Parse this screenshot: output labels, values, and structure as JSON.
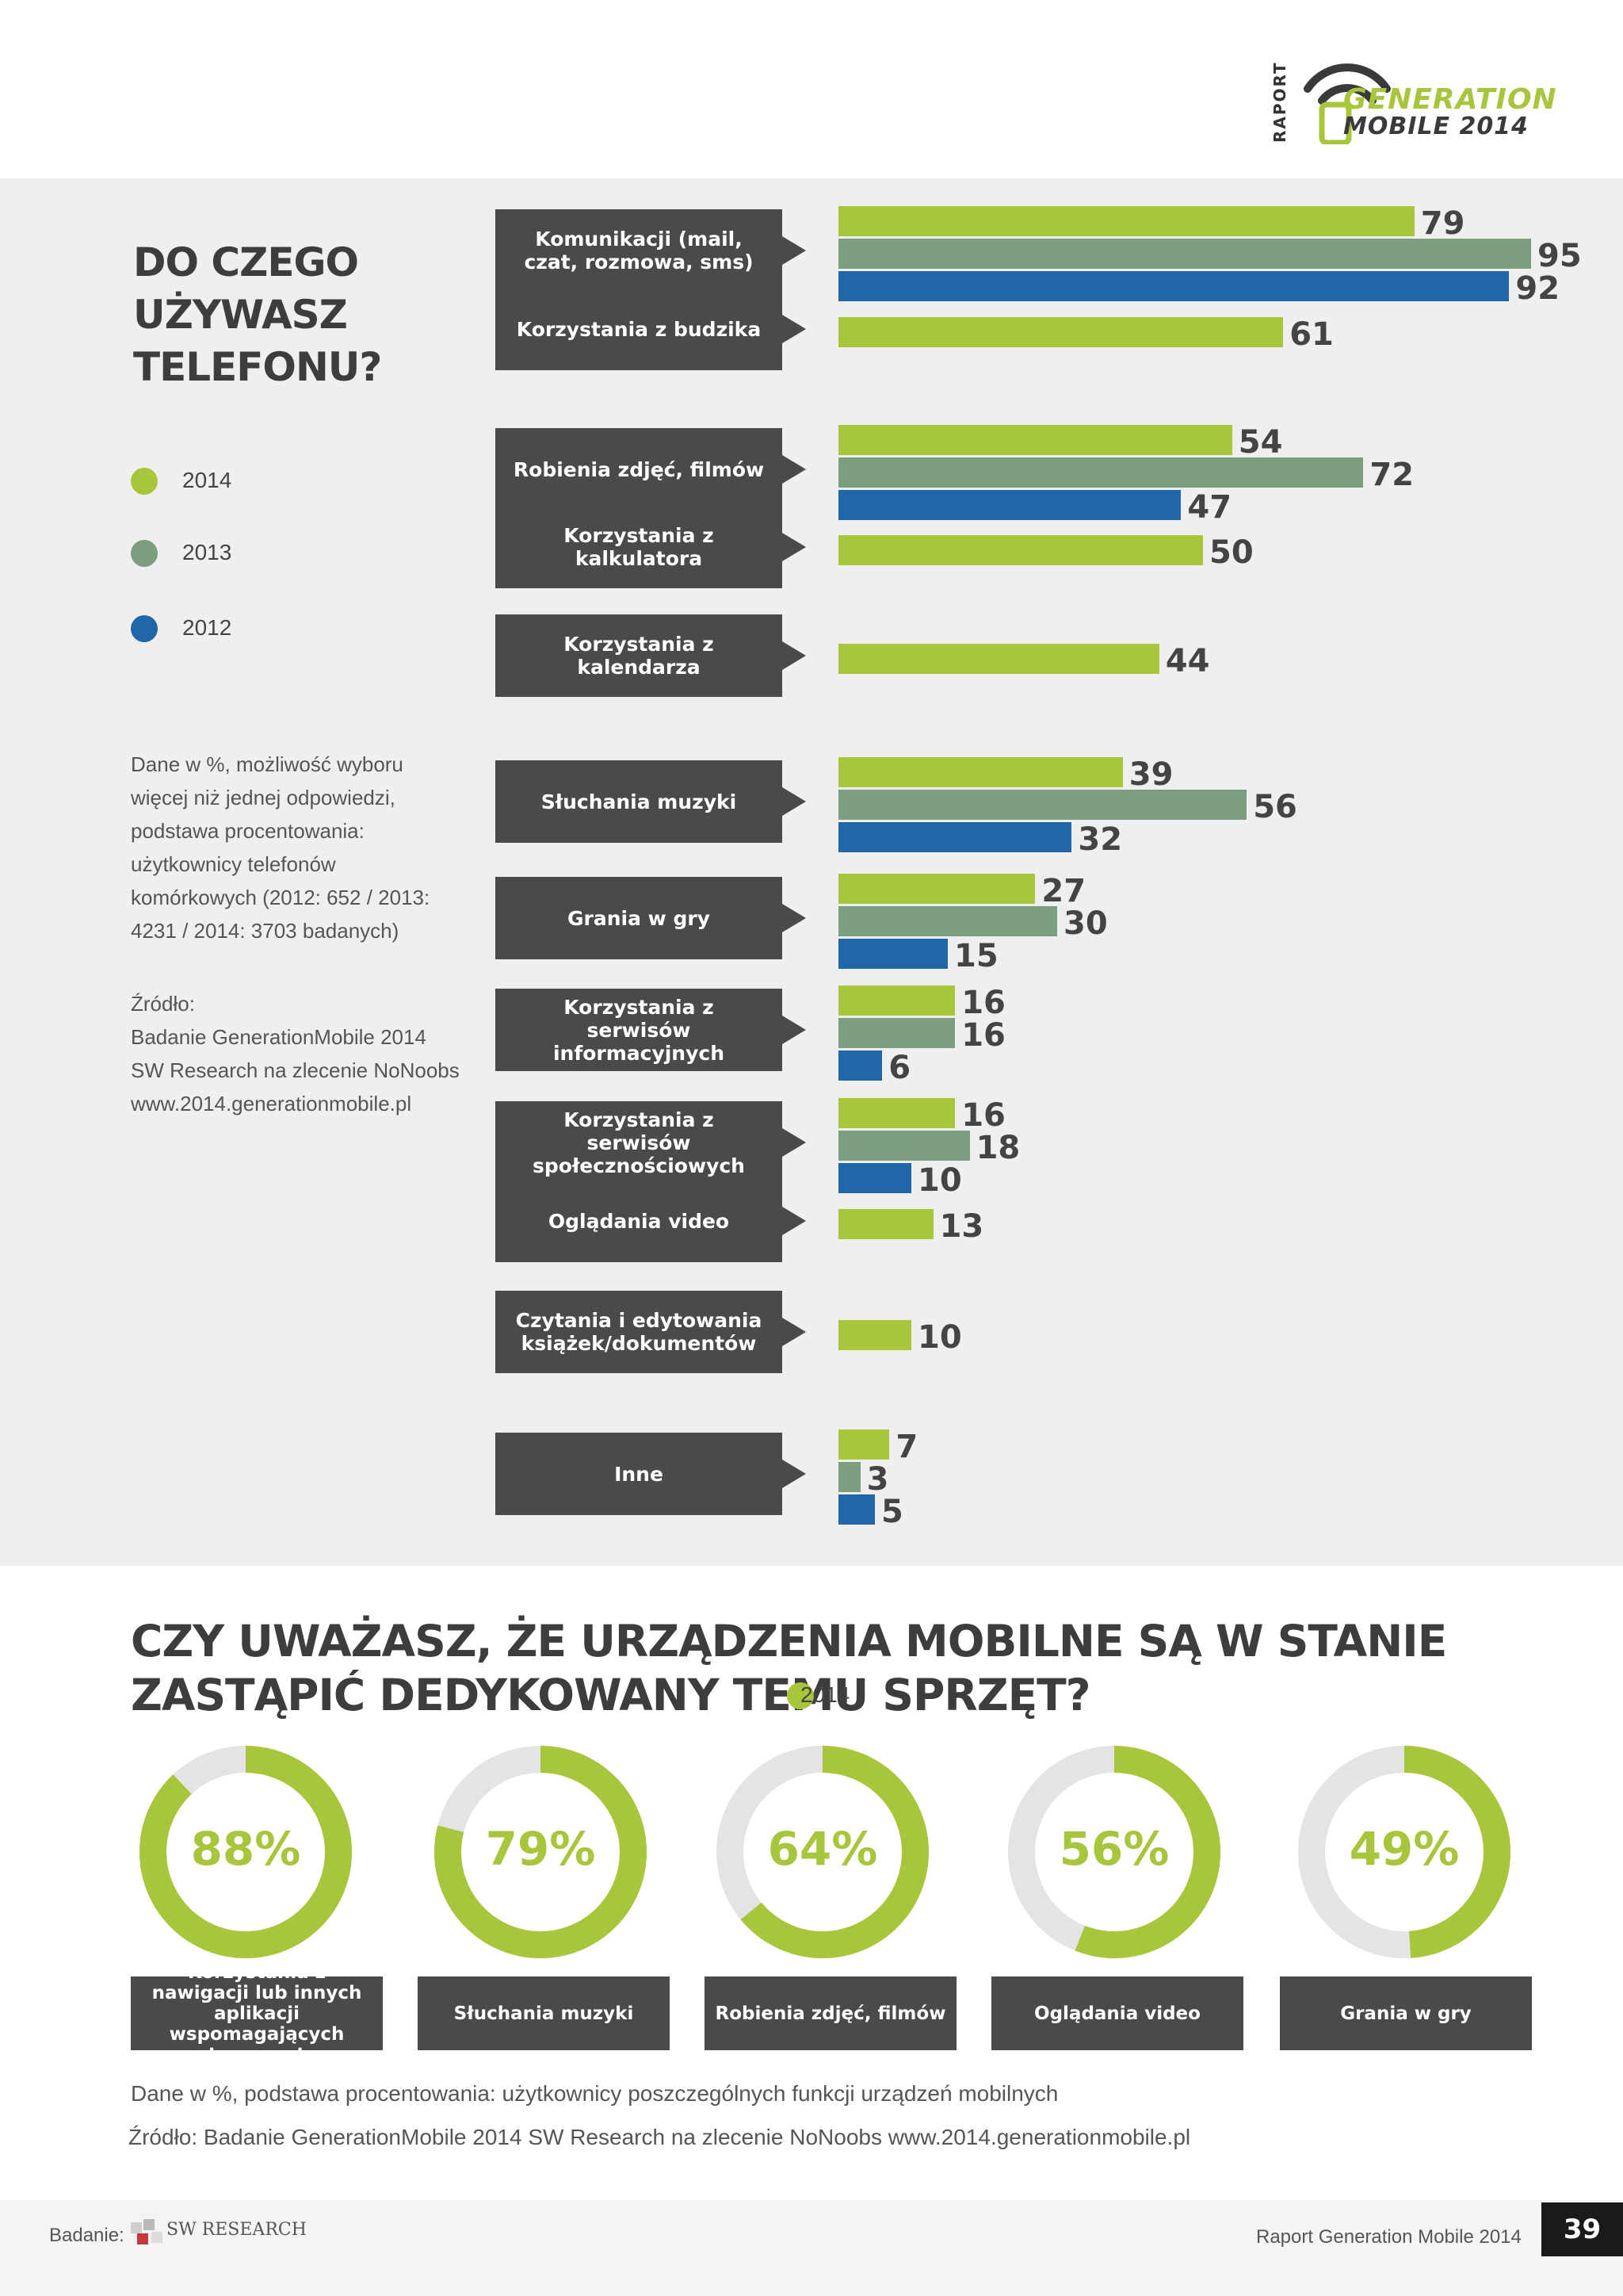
{
  "header": {
    "logo_raport": "RAPORT",
    "logo_generation": "GENERATION",
    "logo_mobile": "MOBILE 2014"
  },
  "question1": {
    "title": "DO CZEGO UŻYWASZ TELEFONU?",
    "note": "Dane w %, możliwość wyboru więcej niż jednej odpowiedzi, podstawa procentowania: użytkownicy telefonów komórkowych (2012: 652 / 2013: 4231 / 2014: 3703 badanych)",
    "source_label": "Źródło:",
    "source_line1": "Badanie GenerationMobile 2014",
    "source_line2": "SW Research na zlecenie NoNoobs",
    "source_line3": "www.2014.generationmobile.pl"
  },
  "colors": {
    "y2014": "#a8c63b",
    "y2013": "#7a9e7e",
    "y2012": "#1f67a8",
    "label_bg": "#4a4a4a",
    "donut_rest": "#e4e4e6"
  },
  "chart_data": [
    {
      "type": "bar",
      "orientation": "horizontal",
      "title": "DO CZEGO UŻYWASZ TELEFONU?",
      "legend": [
        "2014",
        "2013",
        "2012"
      ],
      "legend_position": "left",
      "categories": [
        "Komunikacji (mail, czat, rozmowa, sms)",
        "Korzystania z budzika",
        "Robienia zdjęć, filmów",
        "Korzystania z kalkulatora",
        "Korzystania z kalendarza",
        "Słuchania muzyki",
        "Grania w gry",
        "Korzystania z serwisów informacyjnych",
        "Korzystania z serwisów społecznościowych",
        "Oglądania video",
        "Czytania i edytowania książek/dokumentów",
        "Inne"
      ],
      "series": [
        {
          "name": "2014",
          "values": [
            79,
            61,
            54,
            50,
            44,
            39,
            27,
            16,
            16,
            13,
            10,
            7
          ]
        },
        {
          "name": "2013",
          "values": [
            95,
            null,
            72,
            null,
            null,
            56,
            30,
            16,
            18,
            null,
            null,
            3
          ]
        },
        {
          "name": "2012",
          "values": [
            92,
            null,
            47,
            null,
            null,
            32,
            15,
            6,
            10,
            null,
            null,
            5
          ]
        }
      ],
      "xlim": [
        0,
        100
      ]
    },
    {
      "type": "pie",
      "subtype": "donut",
      "title": "CZY UWAŻASZ, ŻE URZĄDZENIA MOBILNE SĄ W STANIE ZASTĄPIĆ DEDYKOWANY TEMU SPRZĘT?",
      "legend": [
        "2014"
      ],
      "categories": [
        "Korzystania z nawigacji lub innych aplikacji wspomagających transport",
        "Słuchania muzyki",
        "Robienia zdjęć, filmów",
        "Oglądania video",
        "Grania w gry"
      ],
      "values": [
        88,
        79,
        64,
        56,
        49
      ],
      "labels": [
        "88%",
        "79%",
        "64%",
        "56%",
        "49%"
      ]
    }
  ],
  "question2": {
    "title": "CZY UWAŻASZ, ŻE URZĄDZENIA MOBILNE SĄ W STANIE ZASTĄPIĆ DEDYKOWANY TEMU SPRZĘT?",
    "legend_label": "2014",
    "note": "Dane w %, podstawa procentowania: użytkownicy poszczególnych funkcji urządzeń mobilnych",
    "source": "Źródło: Badanie GenerationMobile 2014 SW Research na zlecenie NoNoobs www.2014.generationmobile.pl"
  },
  "footer": {
    "badanie_label": "Badanie:",
    "sw_logo": "SW RESEARCH",
    "report_name": "Raport Generation Mobile 2014",
    "page_number": "39"
  }
}
